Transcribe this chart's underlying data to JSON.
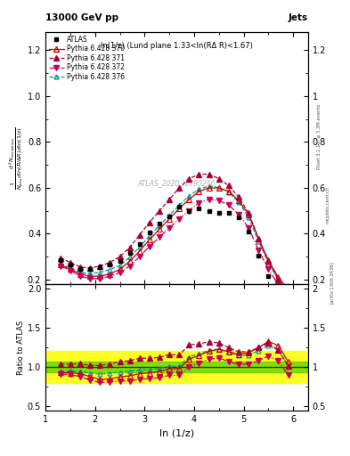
{
  "title_left": "13000 GeV pp",
  "title_right": "Jets",
  "plot_title": "ln(1/z) (Lund plane 1.33<ln(RΔ R)<1.67)",
  "xlabel": "ln (1/z)",
  "ratio_ylabel": "Ratio to ATLAS",
  "watermark": "ATLAS_2020_I1790256",
  "right_label_top": "Rivet 3.1.10, ≥ 3.3M events",
  "right_label_mid": "mcplots.cern.ch",
  "right_label_bot": "[arXiv:1306.3436]",
  "x_data": [
    1.3,
    1.5,
    1.7,
    1.9,
    2.1,
    2.3,
    2.5,
    2.7,
    2.9,
    3.1,
    3.3,
    3.5,
    3.7,
    3.9,
    4.1,
    4.3,
    4.5,
    4.7,
    4.9,
    5.1,
    5.3,
    5.5,
    5.7,
    5.9
  ],
  "atlas_y": [
    0.285,
    0.265,
    0.245,
    0.245,
    0.255,
    0.265,
    0.28,
    0.315,
    0.355,
    0.405,
    0.445,
    0.475,
    0.52,
    0.5,
    0.51,
    0.5,
    0.49,
    0.49,
    0.47,
    0.41,
    0.305,
    0.215,
    0.165,
    0.15
  ],
  "atlas_color": "#000000",
  "p370_y": [
    0.265,
    0.245,
    0.225,
    0.215,
    0.215,
    0.225,
    0.245,
    0.28,
    0.325,
    0.375,
    0.42,
    0.465,
    0.51,
    0.55,
    0.585,
    0.6,
    0.6,
    0.585,
    0.545,
    0.485,
    0.38,
    0.285,
    0.21,
    0.16
  ],
  "p371_y": [
    0.295,
    0.275,
    0.255,
    0.25,
    0.26,
    0.275,
    0.3,
    0.34,
    0.395,
    0.45,
    0.5,
    0.55,
    0.6,
    0.64,
    0.66,
    0.66,
    0.64,
    0.61,
    0.56,
    0.49,
    0.38,
    0.28,
    0.2,
    0.152
  ],
  "p372_y": [
    0.26,
    0.24,
    0.215,
    0.205,
    0.205,
    0.215,
    0.23,
    0.26,
    0.3,
    0.345,
    0.385,
    0.425,
    0.465,
    0.5,
    0.535,
    0.55,
    0.545,
    0.525,
    0.485,
    0.425,
    0.33,
    0.245,
    0.178,
    0.135
  ],
  "p376_y": [
    0.27,
    0.252,
    0.232,
    0.226,
    0.232,
    0.244,
    0.262,
    0.298,
    0.342,
    0.392,
    0.436,
    0.48,
    0.525,
    0.565,
    0.595,
    0.607,
    0.602,
    0.582,
    0.537,
    0.472,
    0.368,
    0.274,
    0.2,
    0.152
  ],
  "p370_color": "#cc0000",
  "p371_color": "#aa0033",
  "p372_color": "#cc0055",
  "p376_color": "#009999",
  "green_band_lo": 0.93,
  "green_band_hi": 1.07,
  "yellow_band_lo": 0.8,
  "yellow_band_hi": 1.2,
  "xlim": [
    1.0,
    6.3
  ],
  "ylim_main": [
    0.18,
    1.28
  ],
  "ylim_ratio": [
    0.45,
    2.05
  ],
  "yticks_main": [
    0.2,
    0.4,
    0.6,
    0.8,
    1.0,
    1.2
  ],
  "yticks_ratio": [
    0.5,
    1.0,
    1.5,
    2.0
  ],
  "xticks": [
    1,
    2,
    3,
    4,
    5,
    6
  ]
}
